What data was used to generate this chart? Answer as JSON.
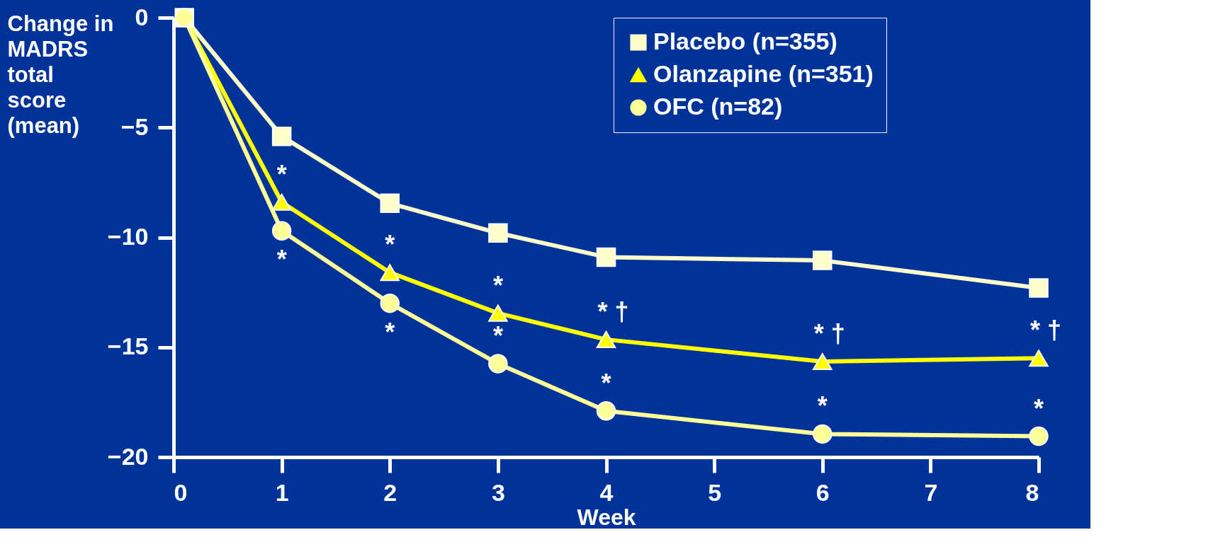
{
  "chart_data": {
    "type": "line",
    "xlabel": "Week",
    "ylabel": "Change in\nMADRS\ntotal\nscore\n(mean)",
    "x": [
      0.1,
      1,
      2,
      3,
      4,
      6,
      8
    ],
    "xlim": [
      0,
      8
    ],
    "xticks": [
      0,
      1,
      2,
      3,
      4,
      5,
      6,
      7,
      8
    ],
    "ylim": [
      -20,
      0
    ],
    "yticks": [
      0,
      -5,
      -10,
      -15,
      -20
    ],
    "grid": false,
    "legend": "top right",
    "line_style": "solid",
    "series": [
      {
        "name": "Placebo (n=355)",
        "color": "#ffffcc",
        "marker": "square",
        "values": [
          0,
          -5.4,
          -8.45,
          -9.8,
          -10.9,
          -11.05,
          -12.3
        ]
      },
      {
        "name": "Olanzapine (n=351)",
        "color": "#ffff00",
        "marker": "triangle",
        "values": [
          0,
          -8.4,
          -11.6,
          -13.45,
          -14.65,
          -15.65,
          -15.5
        ]
      },
      {
        "name": "OFC (n=82)",
        "color": "#ffff99",
        "marker": "circle",
        "values": [
          0,
          -9.7,
          -13.0,
          -15.75,
          -17.9,
          -18.95,
          -19.05
        ]
      }
    ],
    "annotations": [
      {
        "text": "*",
        "x": 1,
        "y": -8.4
      },
      {
        "text": "*",
        "x": 1,
        "y": -9.7
      },
      {
        "text": "*",
        "x": 2,
        "y": -11.6
      },
      {
        "text": "*",
        "x": 2,
        "y": -13.0
      },
      {
        "text": "*",
        "x": 3,
        "y": -13.45
      },
      {
        "text": "*",
        "x": 3,
        "y": -15.75
      },
      {
        "text": "* †",
        "x": 4,
        "y": -14.65
      },
      {
        "text": "*",
        "x": 4,
        "y": -17.9
      },
      {
        "text": "* †",
        "x": 6,
        "y": -15.65
      },
      {
        "text": "*",
        "x": 6,
        "y": -18.95
      },
      {
        "text": "* †",
        "x": 8,
        "y": -15.5
      },
      {
        "text": "*",
        "x": 8,
        "y": -19.05
      }
    ]
  }
}
